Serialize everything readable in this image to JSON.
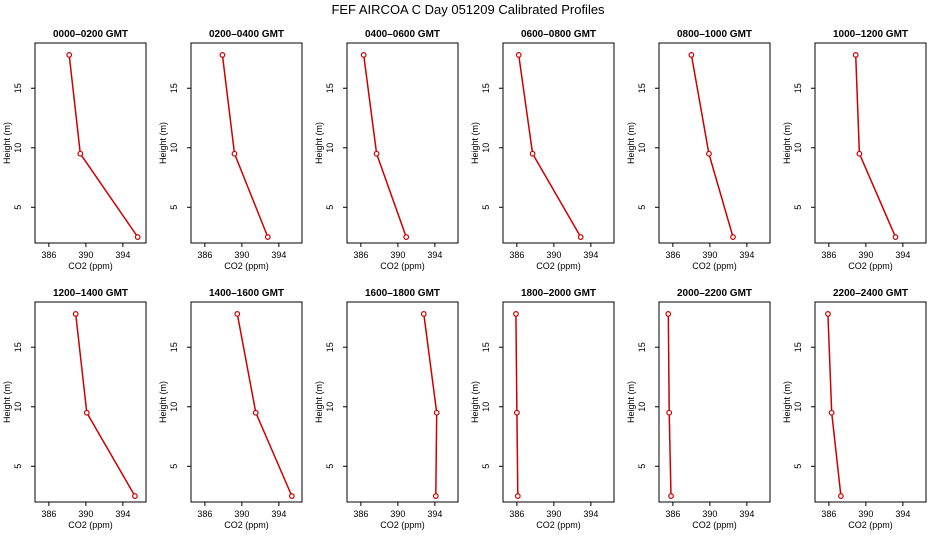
{
  "chart_data": {
    "type": "line",
    "title": "FEF AIRCOA C  Day 051209  Calibrated Profiles",
    "xlabel": "CO2 (ppm)",
    "ylabel": "Height (m)",
    "xlim": [
      384.5,
      396.5
    ],
    "ylim": [
      2,
      18.8
    ],
    "xticks": [
      386,
      390,
      394
    ],
    "yticks": [
      5,
      10,
      15
    ],
    "line_color": "#cc0000",
    "panels": [
      {
        "title": "0000–0200 GMT",
        "heights": [
          17.8,
          9.5,
          2.5
        ],
        "co2": [
          388.2,
          389.4,
          395.6
        ]
      },
      {
        "title": "0200–0400 GMT",
        "heights": [
          17.8,
          9.5,
          2.5
        ],
        "co2": [
          387.9,
          389.2,
          392.8
        ]
      },
      {
        "title": "0400–0600 GMT",
        "heights": [
          17.8,
          9.5,
          2.5
        ],
        "co2": [
          386.3,
          387.7,
          390.9
        ]
      },
      {
        "title": "0600–0800 GMT",
        "heights": [
          17.8,
          9.5,
          2.5
        ],
        "co2": [
          386.2,
          387.7,
          392.9
        ]
      },
      {
        "title": "0800–1000 GMT",
        "heights": [
          17.8,
          9.5,
          2.5
        ],
        "co2": [
          388.0,
          389.9,
          392.5
        ]
      },
      {
        "title": "1000–1200 GMT",
        "heights": [
          17.8,
          9.5,
          2.5
        ],
        "co2": [
          388.9,
          389.3,
          393.2
        ]
      },
      {
        "title": "1200–1400 GMT",
        "heights": [
          17.8,
          9.5,
          2.5
        ],
        "co2": [
          388.9,
          390.1,
          395.3
        ]
      },
      {
        "title": "1400–1600 GMT",
        "heights": [
          17.8,
          9.5,
          2.5
        ],
        "co2": [
          389.5,
          391.5,
          395.4
        ]
      },
      {
        "title": "1600–1800 GMT",
        "heights": [
          17.8,
          9.5,
          2.5
        ],
        "co2": [
          392.8,
          394.2,
          394.1
        ]
      },
      {
        "title": "1800–2000 GMT",
        "heights": [
          17.8,
          9.5,
          2.5
        ],
        "co2": [
          385.9,
          386.0,
          386.1
        ]
      },
      {
        "title": "2000–2200 GMT",
        "heights": [
          17.8,
          9.5,
          2.5
        ],
        "co2": [
          385.5,
          385.6,
          385.8
        ]
      },
      {
        "title": "2200–2400 GMT",
        "heights": [
          17.8,
          9.5,
          2.5
        ],
        "co2": [
          385.9,
          386.3,
          387.3
        ]
      }
    ]
  }
}
